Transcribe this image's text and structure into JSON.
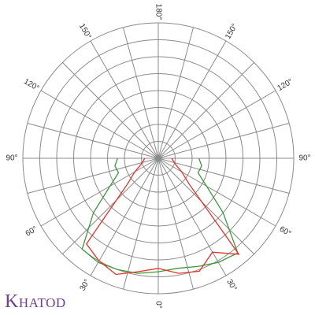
{
  "chart_data": {
    "type": "polar",
    "brand": "KHATOD",
    "theta": [
      -90,
      -80,
      -70,
      -60,
      -50,
      -40,
      -30,
      -20,
      -10,
      0,
      10,
      20,
      30,
      40,
      50,
      60,
      70,
      80,
      90
    ],
    "series": [
      {
        "color": "#3a9a3a",
        "values": [
          2.4,
          2.6,
          2.5,
          3.3,
          5.0,
          7.0,
          7.1,
          7.0,
          6.9,
          6.7,
          6.6,
          6.8,
          7.1,
          7.3,
          5.0,
          3.3,
          2.5,
          2.6,
          2.4
        ]
      },
      {
        "color": "#e8302a",
        "values": [
          0.8,
          0.9,
          1.1,
          1.6,
          2.4,
          6.6,
          7.0,
          7.3,
          6.8,
          6.5,
          6.9,
          7.1,
          6.4,
          7.4,
          2.4,
          1.6,
          1.1,
          0.9,
          0.8
        ]
      }
    ],
    "rlim": [
      0,
      8
    ],
    "rticks": [
      1,
      2,
      3,
      4,
      5,
      6,
      7,
      8
    ],
    "angle_grid_step": 15,
    "thetaticks": [
      {
        "value": -150,
        "label": "150°"
      },
      {
        "value": -120,
        "label": "120°"
      },
      {
        "value": -90,
        "label": "90°"
      },
      {
        "value": -60,
        "label": "60°"
      },
      {
        "value": -30,
        "label": "30°"
      },
      {
        "value": 0,
        "label": "0°"
      },
      {
        "value": 30,
        "label": "30°"
      },
      {
        "value": 60,
        "label": "60°"
      },
      {
        "value": 90,
        "label": "90°"
      },
      {
        "value": 120,
        "label": "120°"
      },
      {
        "value": 150,
        "label": "150°"
      },
      {
        "value": 180,
        "label": "180°"
      }
    ]
  }
}
